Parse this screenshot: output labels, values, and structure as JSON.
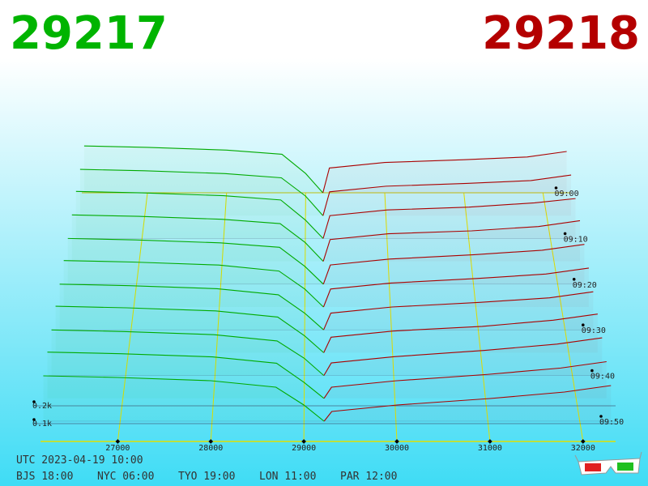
{
  "chart_data": {
    "type": "depth3d",
    "bid": 29217,
    "ask": 29218,
    "bid_color": "#00b400",
    "ask_color": "#b40000",
    "xlim": [
      26170,
      32350
    ],
    "xticks": [
      27000,
      28000,
      29000,
      30000,
      31000,
      32000
    ],
    "zlim": [
      0,
      50
    ],
    "zticks": [
      {
        "value": 0,
        "label": "09:00"
      },
      {
        "value": 10,
        "label": "09:10"
      },
      {
        "value": 20,
        "label": "09:20"
      },
      {
        "value": 30,
        "label": "09:30"
      },
      {
        "value": 40,
        "label": "09:40"
      },
      {
        "value": 50,
        "label": "09:50"
      }
    ],
    "yticks": [
      {
        "value": 0.1,
        "label": "0.1k"
      },
      {
        "value": 0.2,
        "label": "0.2k"
      }
    ],
    "z": [
      0,
      5,
      10,
      15,
      20,
      25,
      30,
      35,
      40,
      45,
      50
    ],
    "bids": {
      "color": "#00aa00",
      "x": [
        26200,
        27000,
        28000,
        28700,
        29000,
        29217
      ],
      "snapshots": [
        [
          0.34,
          0.33,
          0.31,
          0.28,
          0.14,
          0
        ],
        [
          0.33,
          0.32,
          0.3,
          0.27,
          0.14,
          0
        ],
        [
          0.33,
          0.32,
          0.3,
          0.27,
          0.13,
          0
        ],
        [
          0.32,
          0.31,
          0.29,
          0.26,
          0.13,
          0
        ],
        [
          0.31,
          0.3,
          0.28,
          0.25,
          0.12,
          0
        ],
        [
          0.31,
          0.3,
          0.28,
          0.24,
          0.12,
          0
        ],
        [
          0.3,
          0.29,
          0.27,
          0.23,
          0.11,
          0
        ],
        [
          0.3,
          0.29,
          0.27,
          0.23,
          0.11,
          0
        ],
        [
          0.29,
          0.28,
          0.26,
          0.22,
          0.11,
          0
        ],
        [
          0.29,
          0.28,
          0.26,
          0.22,
          0.1,
          0
        ],
        [
          0.28,
          0.27,
          0.25,
          0.21,
          0.1,
          0
        ]
      ]
    },
    "asks": {
      "color": "#aa0000",
      "x": [
        29218,
        29300,
        30000,
        31000,
        31800,
        32300
      ],
      "snapshots": [
        [
          0,
          0.18,
          0.22,
          0.24,
          0.26,
          0.3
        ],
        [
          0,
          0.17,
          0.21,
          0.23,
          0.25,
          0.29
        ],
        [
          0,
          0.16,
          0.2,
          0.22,
          0.25,
          0.28
        ],
        [
          0,
          0.15,
          0.19,
          0.21,
          0.24,
          0.28
        ],
        [
          0,
          0.13,
          0.17,
          0.2,
          0.23,
          0.27
        ],
        [
          0,
          0.12,
          0.16,
          0.19,
          0.22,
          0.26
        ],
        [
          0,
          0.11,
          0.15,
          0.18,
          0.21,
          0.25
        ],
        [
          0,
          0.1,
          0.14,
          0.17,
          0.21,
          0.25
        ],
        [
          0,
          0.08,
          0.12,
          0.16,
          0.2,
          0.24
        ],
        [
          0,
          0.07,
          0.11,
          0.15,
          0.19,
          0.23
        ],
        [
          0,
          0.06,
          0.1,
          0.14,
          0.18,
          0.22
        ]
      ]
    },
    "utc": "UTC 2023-04-19 10:00",
    "zones": [
      "BJS 18:00",
      "NYC 06:00",
      "TYO 19:00",
      "LON 11:00",
      "PAR 12:00"
    ]
  }
}
